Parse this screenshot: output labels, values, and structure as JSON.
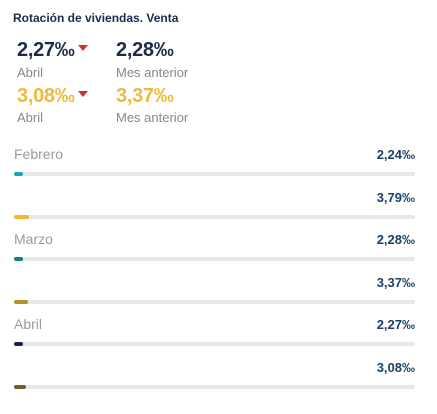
{
  "title": "Rotación de viviendas. Venta",
  "kpis": {
    "current_navy": {
      "value": "2,27‰",
      "label": "Abril"
    },
    "previous_navy": {
      "value": "2,28‰",
      "label": "Mes anterior"
    },
    "current_gold": {
      "value": "3,08‰",
      "label": "Abril"
    },
    "previous_gold": {
      "value": "3,37‰",
      "label": "Mes anterior"
    }
  },
  "colors": {
    "navy": "#1c2b4a",
    "gold": "#f0b93a",
    "down_arrow": "#d32f2f",
    "track": "#e8e8ea"
  },
  "chart_data": {
    "type": "bar",
    "title": "Rotación de viviendas. Venta",
    "categories": [
      "Febrero",
      "Marzo",
      "Abril"
    ],
    "xlim": [
      0,
      100
    ],
    "rows": [
      {
        "category": "Febrero",
        "value": 2.24,
        "label": "2,24‰",
        "color": "#1aa7b5"
      },
      {
        "category": "",
        "value": 3.79,
        "label": "3,79‰",
        "color": "#f5b731"
      },
      {
        "category": "Marzo",
        "value": 2.28,
        "label": "2,28‰",
        "color": "#177d8e"
      },
      {
        "category": "",
        "value": 3.37,
        "label": "3,37‰",
        "color": "#b5912b"
      },
      {
        "category": "Abril",
        "value": 2.27,
        "label": "2,27‰",
        "color": "#16263f"
      },
      {
        "category": "",
        "value": 3.08,
        "label": "3,08‰",
        "color": "#7a5a22"
      }
    ]
  }
}
